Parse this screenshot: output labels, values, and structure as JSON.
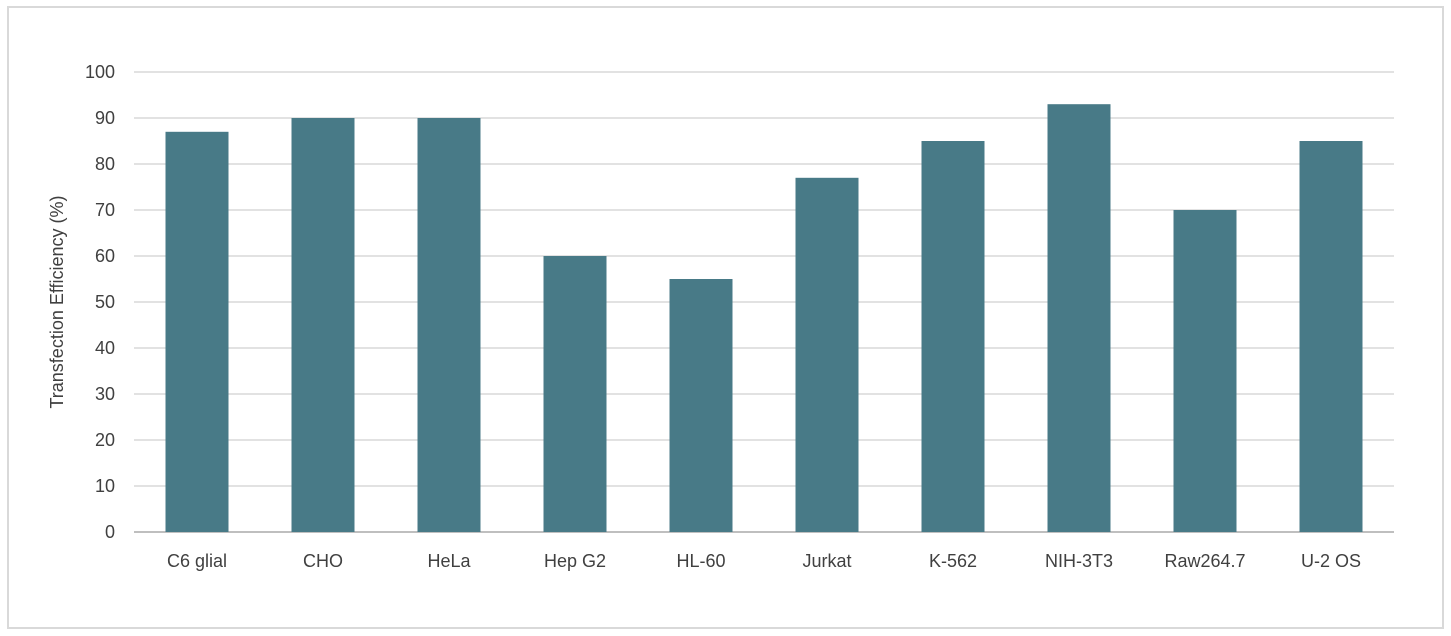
{
  "chart_data": {
    "type": "bar",
    "title": "",
    "xlabel": "",
    "ylabel": "Transfection Efficiency (%)",
    "categories": [
      "C6 glial",
      "CHO",
      "HeLa",
      "Hep G2",
      "HL-60",
      "Jurkat",
      "K-562",
      "NIH-3T3",
      "Raw264.7",
      "U-2 OS"
    ],
    "values": [
      87,
      90,
      90,
      60,
      55,
      77,
      85,
      93,
      70,
      85
    ],
    "ylim": [
      0,
      100
    ],
    "yticks": [
      0,
      10,
      20,
      30,
      40,
      50,
      60,
      70,
      80,
      90,
      100
    ],
    "grid": true,
    "legend": "none",
    "bar_color": "#487a87",
    "grid_color": "#d9d9d9"
  }
}
